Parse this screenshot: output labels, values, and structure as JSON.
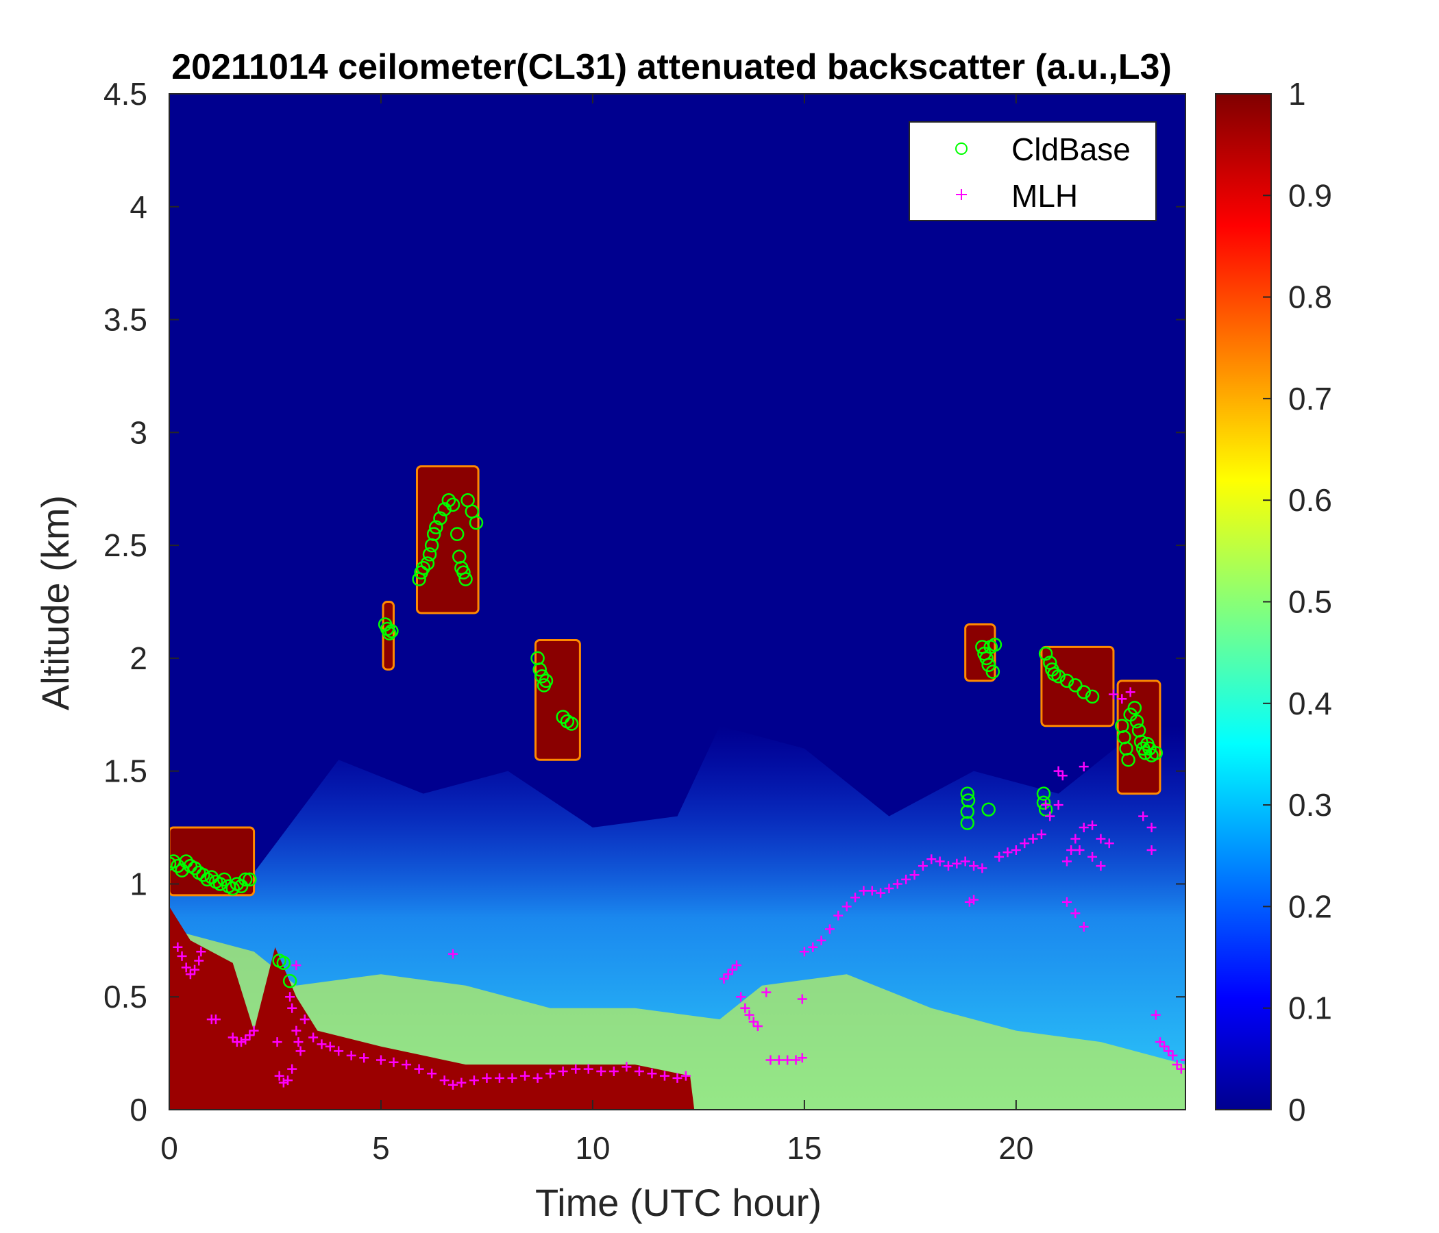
{
  "chart_data": {
    "type": "heatmap",
    "title": "20211014 ceilometer(CL31) attenuated backscatter (a.u.,L3)",
    "xlabel": "Time (UTC hour)",
    "ylabel": "Altitude (km)",
    "xlim": [
      0,
      24
    ],
    "ylim": [
      0,
      4.5
    ],
    "x_ticks": [
      0,
      5,
      10,
      15,
      20
    ],
    "y_ticks": [
      0,
      0.5,
      1,
      1.5,
      2,
      2.5,
      3,
      3.5,
      4,
      4.5
    ],
    "colorbar": {
      "colormap": "jet",
      "range": [
        0,
        1
      ],
      "ticks": [
        0,
        0.1,
        0.2,
        0.3,
        0.4,
        0.5,
        0.6,
        0.7,
        0.8,
        0.9,
        1
      ]
    },
    "legend": {
      "placement": "top-right",
      "entries": [
        {
          "name": "CldBase",
          "marker": "circle",
          "color": "#00ff00"
        },
        {
          "name": "MLH",
          "marker": "plus",
          "color": "#ff00ff"
        }
      ]
    },
    "series": [
      {
        "name": "CldBase",
        "points": [
          [
            0.0,
            1.09
          ],
          [
            0.1,
            1.1
          ],
          [
            0.2,
            1.08
          ],
          [
            0.3,
            1.06
          ],
          [
            0.4,
            1.1
          ],
          [
            0.5,
            1.08
          ],
          [
            0.6,
            1.07
          ],
          [
            0.7,
            1.05
          ],
          [
            0.8,
            1.04
          ],
          [
            0.9,
            1.02
          ],
          [
            1.0,
            1.03
          ],
          [
            1.1,
            1.01
          ],
          [
            1.2,
            1.0
          ],
          [
            1.3,
            1.02
          ],
          [
            1.4,
            0.99
          ],
          [
            1.5,
            0.98
          ],
          [
            1.6,
            1.0
          ],
          [
            1.7,
            0.99
          ],
          [
            1.8,
            1.02
          ],
          [
            1.9,
            1.02
          ],
          [
            2.6,
            0.66
          ],
          [
            2.7,
            0.65
          ],
          [
            2.85,
            0.57
          ],
          [
            5.1,
            2.15
          ],
          [
            5.15,
            2.13
          ],
          [
            5.2,
            2.11
          ],
          [
            5.25,
            2.12
          ],
          [
            5.9,
            2.35
          ],
          [
            5.95,
            2.38
          ],
          [
            6.0,
            2.4
          ],
          [
            6.1,
            2.42
          ],
          [
            6.15,
            2.46
          ],
          [
            6.2,
            2.5
          ],
          [
            6.25,
            2.55
          ],
          [
            6.3,
            2.58
          ],
          [
            6.4,
            2.62
          ],
          [
            6.5,
            2.66
          ],
          [
            6.6,
            2.7
          ],
          [
            6.7,
            2.68
          ],
          [
            6.8,
            2.55
          ],
          [
            6.85,
            2.45
          ],
          [
            6.9,
            2.4
          ],
          [
            6.95,
            2.38
          ],
          [
            7.0,
            2.35
          ],
          [
            7.05,
            2.7
          ],
          [
            7.15,
            2.65
          ],
          [
            7.25,
            2.6
          ],
          [
            8.7,
            2.0
          ],
          [
            8.75,
            1.95
          ],
          [
            8.8,
            1.92
          ],
          [
            8.85,
            1.88
          ],
          [
            8.9,
            1.9
          ],
          [
            9.3,
            1.74
          ],
          [
            9.4,
            1.72
          ],
          [
            9.5,
            1.71
          ],
          [
            18.85,
            1.4
          ],
          [
            18.87,
            1.37
          ],
          [
            18.85,
            1.32
          ],
          [
            18.85,
            1.27
          ],
          [
            19.35,
            1.33
          ],
          [
            19.2,
            2.05
          ],
          [
            19.25,
            2.02
          ],
          [
            19.3,
            2.0
          ],
          [
            19.35,
            1.97
          ],
          [
            19.4,
            2.05
          ],
          [
            19.5,
            2.06
          ],
          [
            19.45,
            1.94
          ],
          [
            20.65,
            1.4
          ],
          [
            20.65,
            1.36
          ],
          [
            20.7,
            1.33
          ],
          [
            20.7,
            2.02
          ],
          [
            20.8,
            1.98
          ],
          [
            20.85,
            1.95
          ],
          [
            20.9,
            1.93
          ],
          [
            21.0,
            1.92
          ],
          [
            21.2,
            1.9
          ],
          [
            21.4,
            1.88
          ],
          [
            21.6,
            1.85
          ],
          [
            21.8,
            1.83
          ],
          [
            22.5,
            1.7
          ],
          [
            22.55,
            1.65
          ],
          [
            22.6,
            1.6
          ],
          [
            22.65,
            1.55
          ],
          [
            22.7,
            1.75
          ],
          [
            22.8,
            1.78
          ],
          [
            22.85,
            1.72
          ],
          [
            22.9,
            1.68
          ],
          [
            22.95,
            1.63
          ],
          [
            23.0,
            1.6
          ],
          [
            23.05,
            1.58
          ],
          [
            23.1,
            1.62
          ],
          [
            23.15,
            1.6
          ],
          [
            23.2,
            1.57
          ],
          [
            23.3,
            1.58
          ]
        ]
      },
      {
        "name": "MLH",
        "points": [
          [
            0.2,
            0.72
          ],
          [
            0.3,
            0.68
          ],
          [
            0.4,
            0.63
          ],
          [
            0.5,
            0.6
          ],
          [
            0.6,
            0.62
          ],
          [
            0.7,
            0.66
          ],
          [
            0.75,
            0.7
          ],
          [
            1.0,
            0.4
          ],
          [
            1.1,
            0.4
          ],
          [
            1.5,
            0.32
          ],
          [
            1.6,
            0.3
          ],
          [
            1.7,
            0.3
          ],
          [
            1.8,
            0.31
          ],
          [
            1.9,
            0.33
          ],
          [
            2.0,
            0.35
          ],
          [
            2.55,
            0.3
          ],
          [
            2.6,
            0.15
          ],
          [
            2.7,
            0.12
          ],
          [
            2.8,
            0.13
          ],
          [
            2.9,
            0.18
          ],
          [
            2.85,
            0.5
          ],
          [
            2.9,
            0.45
          ],
          [
            3.0,
            0.35
          ],
          [
            3.05,
            0.3
          ],
          [
            3.1,
            0.26
          ],
          [
            3.0,
            0.64
          ],
          [
            3.2,
            0.4
          ],
          [
            3.4,
            0.32
          ],
          [
            3.6,
            0.29
          ],
          [
            3.8,
            0.28
          ],
          [
            4.0,
            0.26
          ],
          [
            4.3,
            0.24
          ],
          [
            4.6,
            0.23
          ],
          [
            5.0,
            0.22
          ],
          [
            5.3,
            0.21
          ],
          [
            5.6,
            0.2
          ],
          [
            5.9,
            0.18
          ],
          [
            6.2,
            0.16
          ],
          [
            6.5,
            0.13
          ],
          [
            6.7,
            0.11
          ],
          [
            6.9,
            0.12
          ],
          [
            7.2,
            0.13
          ],
          [
            7.5,
            0.14
          ],
          [
            7.8,
            0.14
          ],
          [
            8.1,
            0.14
          ],
          [
            8.4,
            0.15
          ],
          [
            8.7,
            0.14
          ],
          [
            9.0,
            0.16
          ],
          [
            9.3,
            0.17
          ],
          [
            9.6,
            0.18
          ],
          [
            9.9,
            0.18
          ],
          [
            10.2,
            0.17
          ],
          [
            10.5,
            0.17
          ],
          [
            10.8,
            0.19
          ],
          [
            11.1,
            0.17
          ],
          [
            11.4,
            0.16
          ],
          [
            11.7,
            0.15
          ],
          [
            12.0,
            0.14
          ],
          [
            12.2,
            0.15
          ],
          [
            6.7,
            0.69
          ],
          [
            13.1,
            0.58
          ],
          [
            13.2,
            0.6
          ],
          [
            13.3,
            0.62
          ],
          [
            13.4,
            0.64
          ],
          [
            13.5,
            0.5
          ],
          [
            13.6,
            0.45
          ],
          [
            13.7,
            0.42
          ],
          [
            13.8,
            0.39
          ],
          [
            13.9,
            0.37
          ],
          [
            14.1,
            0.52
          ],
          [
            14.2,
            0.22
          ],
          [
            14.4,
            0.22
          ],
          [
            14.6,
            0.22
          ],
          [
            14.8,
            0.22
          ],
          [
            14.95,
            0.23
          ],
          [
            14.95,
            0.49
          ],
          [
            15.0,
            0.7
          ],
          [
            15.2,
            0.72
          ],
          [
            15.4,
            0.75
          ],
          [
            15.6,
            0.8
          ],
          [
            15.8,
            0.86
          ],
          [
            16.0,
            0.9
          ],
          [
            16.2,
            0.94
          ],
          [
            16.4,
            0.97
          ],
          [
            16.6,
            0.97
          ],
          [
            16.8,
            0.96
          ],
          [
            17.0,
            0.98
          ],
          [
            17.2,
            1.0
          ],
          [
            17.4,
            1.02
          ],
          [
            17.6,
            1.04
          ],
          [
            17.8,
            1.08
          ],
          [
            18.0,
            1.11
          ],
          [
            18.2,
            1.1
          ],
          [
            18.4,
            1.08
          ],
          [
            18.6,
            1.09
          ],
          [
            18.8,
            1.1
          ],
          [
            19.0,
            1.08
          ],
          [
            19.2,
            1.07
          ],
          [
            18.9,
            0.92
          ],
          [
            19.0,
            0.93
          ],
          [
            19.6,
            1.12
          ],
          [
            19.8,
            1.14
          ],
          [
            20.0,
            1.15
          ],
          [
            20.2,
            1.18
          ],
          [
            20.4,
            1.2
          ],
          [
            20.6,
            1.22
          ],
          [
            20.8,
            1.3
          ],
          [
            21.0,
            1.35
          ],
          [
            20.7,
            1.35
          ],
          [
            21.0,
            1.5
          ],
          [
            21.1,
            1.48
          ],
          [
            21.2,
            1.1
          ],
          [
            21.3,
            1.15
          ],
          [
            21.4,
            1.2
          ],
          [
            21.5,
            1.15
          ],
          [
            21.6,
            1.25
          ],
          [
            21.8,
            1.26
          ],
          [
            22.0,
            1.2
          ],
          [
            22.2,
            1.18
          ],
          [
            21.2,
            0.92
          ],
          [
            21.4,
            0.87
          ],
          [
            21.6,
            0.81
          ],
          [
            21.8,
            1.12
          ],
          [
            22.0,
            1.08
          ],
          [
            21.6,
            1.52
          ],
          [
            22.3,
            1.84
          ],
          [
            22.5,
            1.82
          ],
          [
            22.7,
            1.85
          ],
          [
            23.0,
            1.3
          ],
          [
            23.2,
            1.25
          ],
          [
            23.2,
            1.15
          ],
          [
            23.3,
            0.42
          ],
          [
            23.4,
            0.3
          ],
          [
            23.5,
            0.28
          ],
          [
            23.6,
            0.26
          ],
          [
            23.7,
            0.24
          ],
          [
            23.8,
            0.2
          ],
          [
            23.9,
            0.18
          ],
          [
            24.0,
            0.22
          ]
        ]
      }
    ]
  }
}
